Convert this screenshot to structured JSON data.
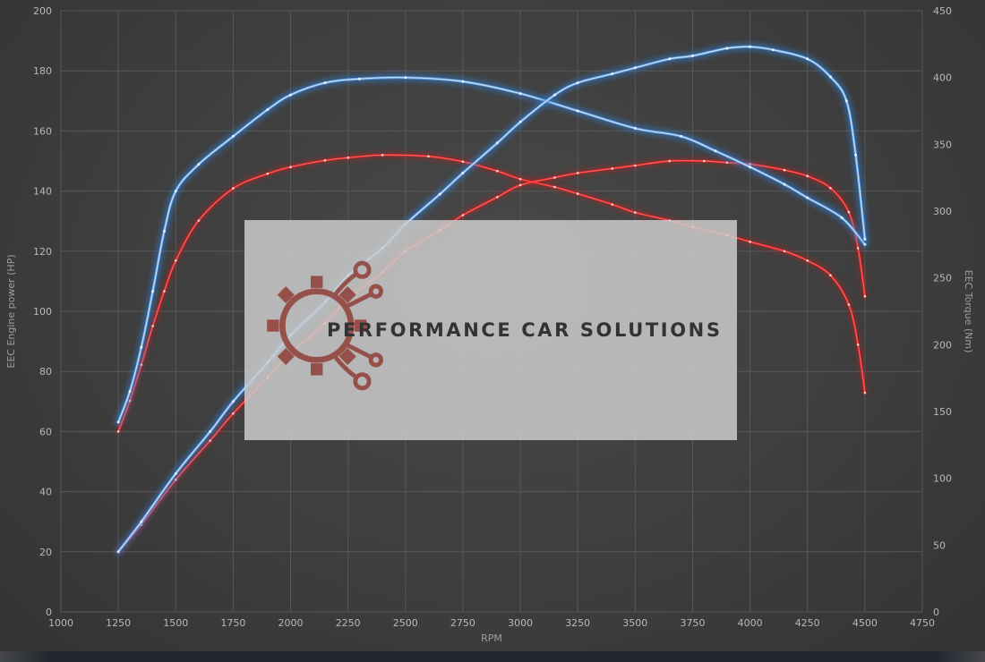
{
  "watermark": {
    "text": "PERFORMANCE CAR SOLUTIONS"
  },
  "colors": {
    "background_center": "#484848",
    "background_edge": "#343434",
    "grid": "#585858",
    "tick_text": "#b8b8b8",
    "axis_title": "#9e9e9e",
    "watermark_bg": "rgba(203,203,203,0.86)",
    "watermark_text": "#333333",
    "logo": "#8e3a32",
    "blue": {
      "glow": "#2f7fd6",
      "line": "#5b9be0",
      "core": "#d9ebfc",
      "dot": "#edf6ff"
    },
    "red": {
      "glow": "#c41a1a",
      "line": "#f22727",
      "core": "#ff7070",
      "dot": "#ffe3e3"
    }
  },
  "chart_data": {
    "type": "line",
    "title": "",
    "xlabel": "RPM",
    "ylabel_left": "EEC Engine power (HP)",
    "ylabel_right": "EEC Torque (Nm)",
    "grid": true,
    "legend": false,
    "x_range": [
      1000,
      4750
    ],
    "y_left_range": [
      0,
      200
    ],
    "y_right_range": [
      0,
      450
    ],
    "x_ticks": [
      1000,
      1250,
      1500,
      1750,
      2000,
      2250,
      2500,
      2750,
      3000,
      3250,
      3500,
      3750,
      4000,
      4250,
      4500,
      4750
    ],
    "y_left_ticks": [
      0,
      20,
      40,
      60,
      80,
      100,
      120,
      140,
      160,
      180,
      200
    ],
    "y_right_ticks": [
      0,
      50,
      100,
      150,
      200,
      250,
      300,
      350,
      400,
      450
    ],
    "series": [
      {
        "name": "torque-red",
        "axis": "right",
        "palette": "red",
        "unit": "Nm",
        "points": [
          [
            1250,
            135
          ],
          [
            1300,
            158
          ],
          [
            1350,
            185
          ],
          [
            1400,
            214
          ],
          [
            1450,
            240
          ],
          [
            1500,
            263
          ],
          [
            1600,
            293
          ],
          [
            1750,
            317
          ],
          [
            1900,
            328
          ],
          [
            2000,
            333
          ],
          [
            2150,
            338
          ],
          [
            2250,
            340
          ],
          [
            2400,
            342
          ],
          [
            2600,
            341
          ],
          [
            2750,
            337
          ],
          [
            2900,
            330
          ],
          [
            3000,
            324
          ],
          [
            3150,
            318
          ],
          [
            3250,
            313
          ],
          [
            3400,
            305
          ],
          [
            3500,
            299
          ],
          [
            3650,
            293
          ],
          [
            3750,
            288
          ],
          [
            3900,
            282
          ],
          [
            4000,
            277
          ],
          [
            4150,
            270
          ],
          [
            4250,
            263
          ],
          [
            4350,
            252
          ],
          [
            4430,
            230
          ],
          [
            4470,
            200
          ],
          [
            4500,
            164
          ]
        ]
      },
      {
        "name": "power-red",
        "axis": "left",
        "palette": "red",
        "unit": "HP",
        "points": [
          [
            1250,
            20
          ],
          [
            1350,
            29
          ],
          [
            1500,
            44
          ],
          [
            1650,
            57
          ],
          [
            1750,
            66
          ],
          [
            1900,
            78
          ],
          [
            2000,
            86
          ],
          [
            2150,
            96
          ],
          [
            2250,
            104
          ],
          [
            2400,
            113
          ],
          [
            2500,
            120
          ],
          [
            2650,
            127
          ],
          [
            2750,
            132
          ],
          [
            2900,
            138
          ],
          [
            3000,
            142
          ],
          [
            3150,
            144.5
          ],
          [
            3250,
            146
          ],
          [
            3400,
            147.5
          ],
          [
            3500,
            148.5
          ],
          [
            3650,
            150
          ],
          [
            3800,
            150
          ],
          [
            3900,
            149.5
          ],
          [
            4000,
            149
          ],
          [
            4150,
            147
          ],
          [
            4250,
            145
          ],
          [
            4350,
            141
          ],
          [
            4430,
            133
          ],
          [
            4470,
            121
          ],
          [
            4500,
            105
          ]
        ]
      },
      {
        "name": "torque-blue",
        "axis": "right",
        "palette": "blue",
        "unit": "Nm",
        "points": [
          [
            1250,
            142
          ],
          [
            1300,
            165
          ],
          [
            1350,
            198
          ],
          [
            1400,
            240
          ],
          [
            1450,
            285
          ],
          [
            1500,
            315
          ],
          [
            1600,
            335
          ],
          [
            1750,
            356
          ],
          [
            1900,
            376
          ],
          [
            2000,
            387
          ],
          [
            2150,
            396
          ],
          [
            2300,
            399
          ],
          [
            2500,
            400
          ],
          [
            2750,
            397
          ],
          [
            3000,
            388
          ],
          [
            3250,
            375
          ],
          [
            3500,
            362
          ],
          [
            3700,
            356
          ],
          [
            3850,
            345
          ],
          [
            4000,
            333
          ],
          [
            4150,
            320
          ],
          [
            4250,
            310
          ],
          [
            4400,
            295
          ],
          [
            4500,
            275
          ]
        ]
      },
      {
        "name": "power-blue",
        "axis": "left",
        "palette": "blue",
        "unit": "HP",
        "points": [
          [
            1250,
            20
          ],
          [
            1350,
            30
          ],
          [
            1500,
            46
          ],
          [
            1650,
            60
          ],
          [
            1750,
            70
          ],
          [
            1900,
            83
          ],
          [
            2000,
            92
          ],
          [
            2150,
            103
          ],
          [
            2250,
            112
          ],
          [
            2400,
            121
          ],
          [
            2500,
            129
          ],
          [
            2650,
            139
          ],
          [
            2750,
            146
          ],
          [
            2900,
            156
          ],
          [
            3000,
            163
          ],
          [
            3150,
            172
          ],
          [
            3250,
            176
          ],
          [
            3400,
            179
          ],
          [
            3500,
            181
          ],
          [
            3650,
            184
          ],
          [
            3750,
            185
          ],
          [
            3900,
            187.5
          ],
          [
            4000,
            188
          ],
          [
            4100,
            187
          ],
          [
            4250,
            184
          ],
          [
            4350,
            178
          ],
          [
            4420,
            170
          ],
          [
            4460,
            152
          ],
          [
            4500,
            124
          ]
        ]
      }
    ]
  }
}
